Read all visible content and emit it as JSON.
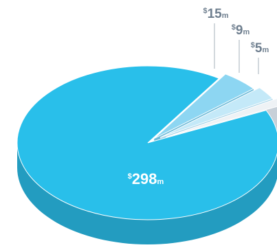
{
  "chart_data": {
    "type": "pie",
    "style": "3d",
    "legend": "none",
    "slices": [
      {
        "prefix": "$",
        "value": 298,
        "display": "298",
        "suffix": "m",
        "color": "#29bfea",
        "side_color": "#239cc0"
      },
      {
        "prefix": "$",
        "value": 15,
        "display": "15",
        "suffix": "m",
        "color": "#8dd6f2",
        "side_color": "#6cbad8"
      },
      {
        "prefix": "$",
        "value": 9,
        "display": "9",
        "suffix": "m",
        "color": "#c4e9f8",
        "side_color": "#9fd0e6"
      },
      {
        "prefix": "$",
        "value": 5,
        "display": "5",
        "suffix": "m",
        "color": "#eef2f5",
        "side_color": "#c7d0d8"
      }
    ],
    "label_color": "#6f7f8f",
    "leader_line_color": "#b3bdc6"
  }
}
